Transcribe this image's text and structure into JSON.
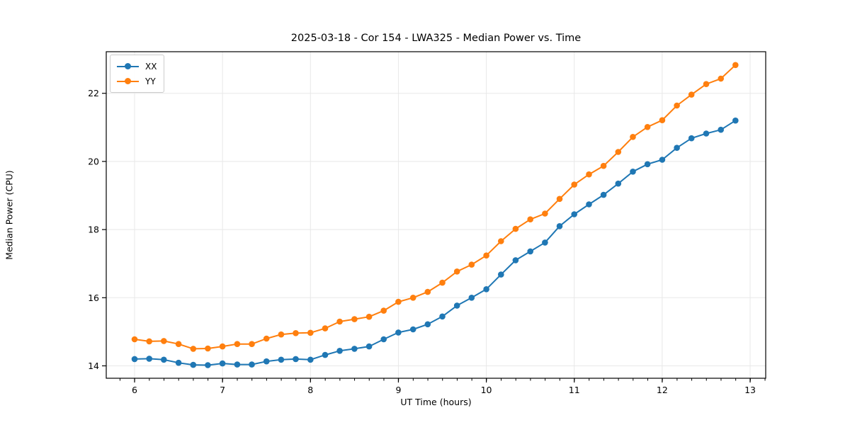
{
  "title": "2025-03-18 - Cor 154 - LWA325 - Median Power vs. Time",
  "chart_data": {
    "type": "line",
    "title": "2025-03-18 - Cor 154 - LWA325 - Median Power vs. Time",
    "xlabel": "UT Time (hours)",
    "ylabel": "Median Power (CPU)",
    "xlim": [
      5.678,
      13.177
    ],
    "ylim": [
      13.636,
      23.221
    ],
    "x_ticks": [
      6,
      7,
      8,
      9,
      10,
      11,
      12,
      13
    ],
    "y_ticks": [
      14,
      16,
      18,
      20,
      22
    ],
    "x_minor_tick_step": 0.1667,
    "grid": "major",
    "grid_color": "#e8e8e8",
    "legend_position": "upper-left",
    "x": [
      6.0,
      6.167,
      6.333,
      6.5,
      6.667,
      6.833,
      7.0,
      7.167,
      7.333,
      7.5,
      7.667,
      7.833,
      8.0,
      8.167,
      8.333,
      8.5,
      8.667,
      8.833,
      9.0,
      9.167,
      9.333,
      9.5,
      9.667,
      9.833,
      10.0,
      10.167,
      10.333,
      10.5,
      10.667,
      10.833,
      11.0,
      11.167,
      11.333,
      11.5,
      11.667,
      11.833,
      12.0,
      12.167,
      12.333,
      12.5,
      12.667,
      12.833
    ],
    "series": [
      {
        "name": "XX",
        "color": "#1f77b4",
        "values": [
          14.2,
          14.21,
          14.18,
          14.09,
          14.03,
          14.02,
          14.07,
          14.04,
          14.04,
          14.13,
          14.18,
          14.2,
          14.18,
          14.32,
          14.44,
          14.5,
          14.57,
          14.78,
          14.98,
          15.07,
          15.22,
          15.45,
          15.77,
          16.0,
          16.25,
          16.68,
          17.1,
          17.36,
          17.62,
          18.1,
          18.45,
          18.74,
          19.02,
          19.35,
          19.7,
          19.92,
          20.05,
          20.4,
          20.68,
          20.82,
          20.93,
          21.2
        ]
      },
      {
        "name": "YY",
        "color": "#ff7f0e",
        "values": [
          14.78,
          14.72,
          14.73,
          14.64,
          14.5,
          14.51,
          14.57,
          14.64,
          14.64,
          14.8,
          14.92,
          14.96,
          14.97,
          15.1,
          15.3,
          15.37,
          15.44,
          15.62,
          15.88,
          16.0,
          16.17,
          16.44,
          16.77,
          16.97,
          17.24,
          17.66,
          18.02,
          18.3,
          18.47,
          18.9,
          19.32,
          19.62,
          19.87,
          20.28,
          20.72,
          21.01,
          21.21,
          21.64,
          21.96,
          22.27,
          22.43,
          22.83
        ]
      }
    ]
  }
}
